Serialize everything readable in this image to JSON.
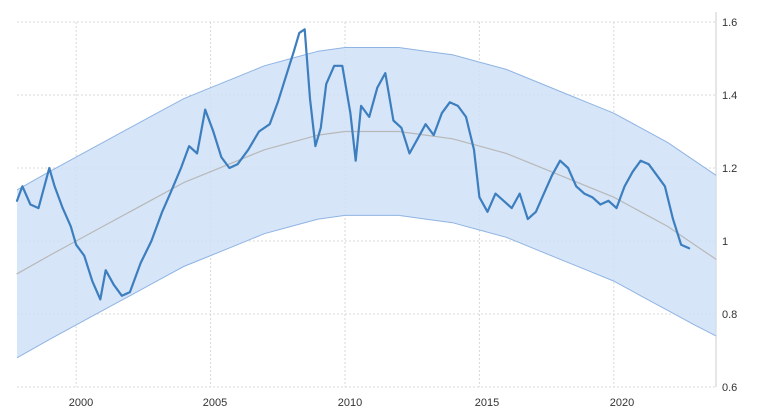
{
  "chart_data": {
    "type": "line",
    "title": "",
    "xlabel": "",
    "ylabel": "",
    "x_ticks": [
      "2000",
      "2005",
      "2010",
      "2015",
      "2020"
    ],
    "y_ticks": [
      "0.6",
      "0.8",
      "1",
      "1.2",
      "1.4",
      "1.6"
    ],
    "xlim": [
      1997.8,
      2023.8
    ],
    "ylim": [
      0.6,
      1.6
    ],
    "grid": true,
    "series": [
      {
        "role": "price",
        "color": "#3d7ebf",
        "x": [
          1997.8,
          1998.0,
          1998.3,
          1998.6,
          1999.0,
          1999.2,
          1999.5,
          1999.8,
          2000.0,
          2000.3,
          2000.6,
          2000.9,
          2001.1,
          2001.4,
          2001.7,
          2002.0,
          2002.4,
          2002.8,
          2003.2,
          2003.5,
          2003.9,
          2004.2,
          2004.5,
          2004.8,
          2005.1,
          2005.4,
          2005.7,
          2006.0,
          2006.4,
          2006.8,
          2007.2,
          2007.5,
          2007.8,
          2008.1,
          2008.3,
          2008.5,
          2008.7,
          2008.9,
          2009.1,
          2009.3,
          2009.6,
          2009.9,
          2010.2,
          2010.4,
          2010.6,
          2010.9,
          2011.2,
          2011.5,
          2011.8,
          2012.1,
          2012.4,
          2012.7,
          2013.0,
          2013.3,
          2013.6,
          2013.9,
          2014.2,
          2014.5,
          2014.8,
          2015.0,
          2015.3,
          2015.6,
          2015.9,
          2016.2,
          2016.5,
          2016.8,
          2017.1,
          2017.4,
          2017.7,
          2018.0,
          2018.3,
          2018.6,
          2018.9,
          2019.2,
          2019.5,
          2019.8,
          2020.1,
          2020.4,
          2020.7,
          2021.0,
          2021.3,
          2021.6,
          2021.9,
          2022.2,
          2022.5,
          2022.8
        ],
        "y": [
          1.11,
          1.15,
          1.1,
          1.09,
          1.2,
          1.15,
          1.09,
          1.04,
          0.99,
          0.96,
          0.89,
          0.84,
          0.92,
          0.88,
          0.85,
          0.86,
          0.94,
          1.0,
          1.08,
          1.13,
          1.2,
          1.26,
          1.24,
          1.36,
          1.3,
          1.23,
          1.2,
          1.21,
          1.25,
          1.3,
          1.32,
          1.38,
          1.45,
          1.52,
          1.57,
          1.58,
          1.39,
          1.26,
          1.31,
          1.43,
          1.48,
          1.48,
          1.35,
          1.22,
          1.37,
          1.34,
          1.42,
          1.46,
          1.33,
          1.31,
          1.24,
          1.28,
          1.32,
          1.29,
          1.35,
          1.38,
          1.37,
          1.34,
          1.25,
          1.12,
          1.08,
          1.13,
          1.11,
          1.09,
          1.13,
          1.06,
          1.08,
          1.13,
          1.18,
          1.22,
          1.2,
          1.15,
          1.13,
          1.12,
          1.1,
          1.11,
          1.09,
          1.15,
          1.19,
          1.22,
          1.21,
          1.18,
          1.15,
          1.06,
          0.99,
          0.98
        ]
      },
      {
        "role": "trend",
        "color": "#b8b8b8",
        "x": [
          1997.8,
          1999.0,
          2000.0,
          2001.0,
          2002.0,
          2003.0,
          2004.0,
          2005.0,
          2006.0,
          2007.0,
          2008.0,
          2009.0,
          2010.0,
          2011.0,
          2012.0,
          2013.0,
          2014.0,
          2015.0,
          2016.0,
          2017.0,
          2018.0,
          2019.0,
          2020.0,
          2021.0,
          2022.0,
          2023.0,
          2023.8
        ],
        "y": [
          0.91,
          0.96,
          1.0,
          1.04,
          1.08,
          1.12,
          1.16,
          1.19,
          1.22,
          1.25,
          1.27,
          1.29,
          1.3,
          1.3,
          1.3,
          1.29,
          1.28,
          1.26,
          1.24,
          1.21,
          1.18,
          1.15,
          1.12,
          1.08,
          1.04,
          0.99,
          0.95
        ]
      }
    ],
    "band": {
      "color": "#cfe0f7",
      "edge_color": "#8fb4e3",
      "x": [
        1997.8,
        1999.0,
        2000.0,
        2001.0,
        2002.0,
        2003.0,
        2004.0,
        2005.0,
        2006.0,
        2007.0,
        2008.0,
        2009.0,
        2010.0,
        2011.0,
        2012.0,
        2013.0,
        2014.0,
        2015.0,
        2016.0,
        2017.0,
        2018.0,
        2019.0,
        2020.0,
        2021.0,
        2022.0,
        2023.0,
        2023.8
      ],
      "upper": [
        1.14,
        1.19,
        1.23,
        1.27,
        1.31,
        1.35,
        1.39,
        1.42,
        1.45,
        1.48,
        1.5,
        1.52,
        1.53,
        1.53,
        1.53,
        1.52,
        1.51,
        1.49,
        1.47,
        1.44,
        1.41,
        1.38,
        1.35,
        1.31,
        1.27,
        1.22,
        1.18
      ],
      "lower": [
        0.68,
        0.73,
        0.77,
        0.81,
        0.85,
        0.89,
        0.93,
        0.96,
        0.99,
        1.02,
        1.04,
        1.06,
        1.07,
        1.07,
        1.07,
        1.06,
        1.05,
        1.03,
        1.01,
        0.98,
        0.95,
        0.92,
        0.89,
        0.85,
        0.81,
        0.77,
        0.74
      ]
    }
  }
}
